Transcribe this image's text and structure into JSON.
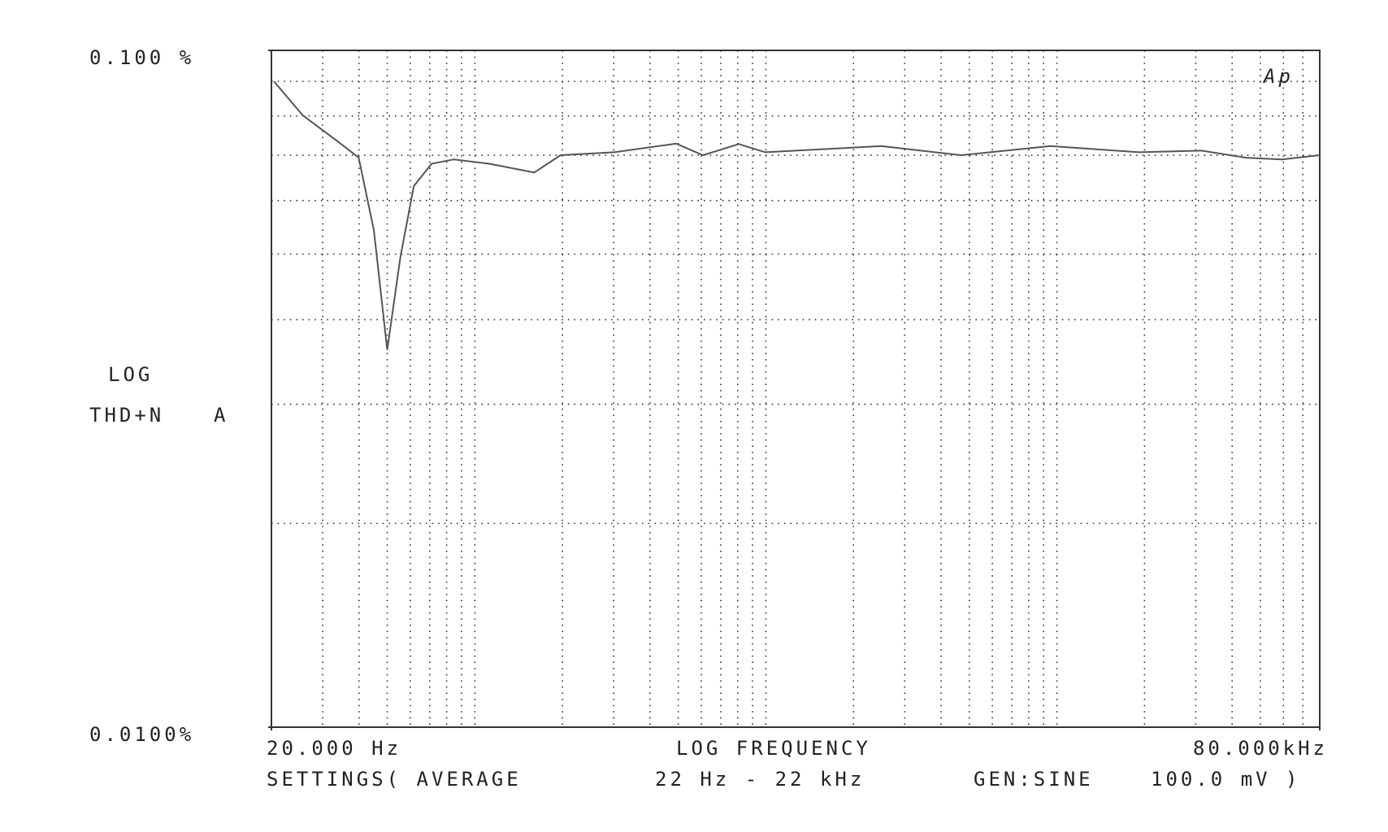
{
  "chart_data": {
    "type": "line",
    "log_x": true,
    "log_y": true,
    "grid": true,
    "color": "#555555",
    "x_label": "LOG FREQUENCY",
    "y_label": "LOG",
    "y_label2": "THD+N",
    "channel": "A",
    "logo": "Ap",
    "settings": [
      "SETTINGS( AVERAGE",
      "22 Hz - 22 kHz",
      "GEN:SINE",
      "100.0 mV )"
    ],
    "xlim": [
      20,
      80000
    ],
    "ylim": [
      0.01,
      0.1
    ],
    "xticks": [
      {
        "value": 20,
        "label": "20.000 Hz"
      },
      {
        "value": 80000,
        "label": "80.000kHz"
      }
    ],
    "yticks": [
      {
        "value": 0.01,
        "label": "0.0100%"
      },
      {
        "value": 0.1,
        "label": "0.100 %"
      }
    ],
    "xgrid": [
      30,
      40,
      50,
      60,
      70,
      80,
      90,
      100,
      200,
      300,
      400,
      500,
      600,
      700,
      800,
      900,
      1000,
      2000,
      3000,
      4000,
      5000,
      6000,
      7000,
      8000,
      9000,
      10000,
      20000,
      30000,
      40000,
      50000,
      60000,
      70000
    ],
    "ygrid": [
      0.02,
      0.03,
      0.04,
      0.05,
      0.06,
      0.07,
      0.08,
      0.09
    ],
    "x": [
      20.4,
      25.6,
      33.9,
      39.9,
      45,
      50,
      55.5,
      61.7,
      71,
      84.7,
      112,
      160,
      197,
      301,
      492,
      608,
      807,
      996,
      2489,
      4690,
      9490,
      19180,
      31400,
      44700,
      59200,
      80000
    ],
    "values": [
      0.09,
      0.0802,
      0.0733,
      0.0694,
      0.0542,
      0.0361,
      0.0495,
      0.063,
      0.068,
      0.069,
      0.068,
      0.066,
      0.07,
      0.0707,
      0.0728,
      0.07,
      0.0727,
      0.0707,
      0.0722,
      0.07,
      0.0722,
      0.0707,
      0.0711,
      0.0694,
      0.069,
      0.07
    ]
  }
}
